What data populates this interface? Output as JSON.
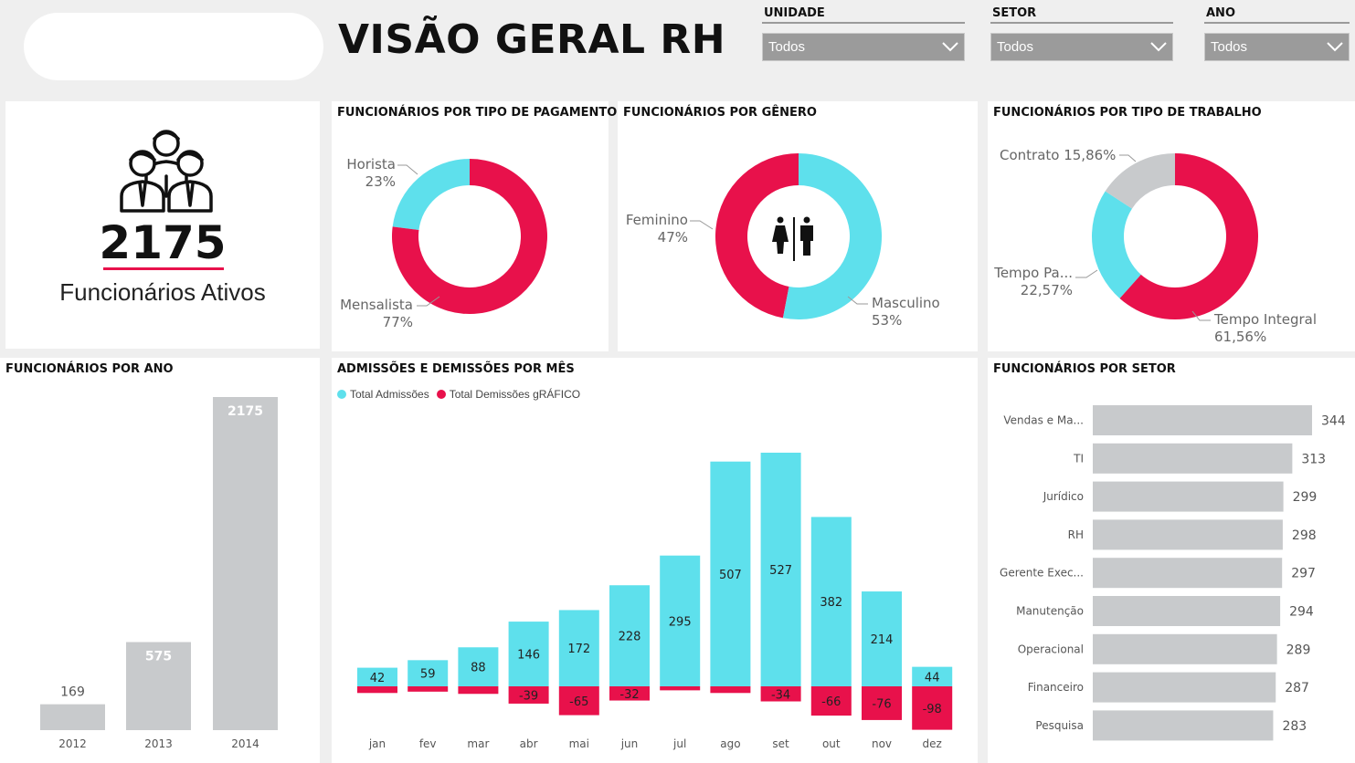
{
  "header": {
    "title": "VISÃO GERAL RH"
  },
  "filters": [
    {
      "label": "UNIDADE",
      "value": "Todos"
    },
    {
      "label": "SETOR",
      "value": "Todos"
    },
    {
      "label": "ANO",
      "value": "Todos"
    }
  ],
  "kpi": {
    "value": "2175",
    "label": "Funcionários Ativos",
    "icon": "people-group-icon"
  },
  "colors": {
    "cyan": "#5ee0ec",
    "red": "#e8114b",
    "gray": "#c8cacc"
  },
  "chart_data": [
    {
      "type": "pie",
      "title": "FUNCIONÁRIOS POR TIPO DE PAGAMENTO",
      "categories": [
        "Horista",
        "Mensalista"
      ],
      "values": [
        23,
        77
      ],
      "labels": [
        "23%",
        "77%"
      ]
    },
    {
      "type": "pie",
      "title": "FUNCIONÁRIOS POR GÊNERO",
      "categories": [
        "Feminino",
        "Masculino"
      ],
      "values": [
        47,
        53
      ],
      "labels": [
        "47%",
        "53%"
      ]
    },
    {
      "type": "pie",
      "title": "FUNCIONÁRIOS POR TIPO DE TRABALHO",
      "categories": [
        "Contrato",
        "Tempo Pa...",
        "Tempo Integral"
      ],
      "values": [
        15.86,
        22.57,
        61.56
      ],
      "labels": [
        "15,86%",
        "22,57%",
        "61,56%"
      ]
    },
    {
      "type": "bar",
      "title": "FUNCIONÁRIOS POR ANO",
      "categories": [
        "2012",
        "2013",
        "2014"
      ],
      "values": [
        169,
        575,
        2175
      ]
    },
    {
      "type": "bar",
      "title": "ADMISSÕES E DEMISSÕES POR MÊS",
      "categories": [
        "jan",
        "fev",
        "mar",
        "abr",
        "mai",
        "jun",
        "jul",
        "ago",
        "set",
        "out",
        "nov",
        "dez"
      ],
      "series": [
        {
          "name": "Total Admissões",
          "values": [
            42,
            59,
            88,
            146,
            172,
            228,
            295,
            507,
            527,
            382,
            214,
            44
          ]
        },
        {
          "name": "Total Demissões gRÁFICO",
          "values": [
            -15,
            -12,
            -17,
            -39,
            -65,
            -32,
            -9,
            -15,
            -34,
            -66,
            -76,
            -98
          ]
        }
      ],
      "shown_labels": [
        "42",
        "59",
        "88",
        "146",
        "172",
        "228",
        "295",
        "507",
        "527",
        "382",
        "214",
        "44",
        "",
        "",
        "",
        "-39",
        "-65",
        "-32",
        "",
        "",
        "-34",
        "-66",
        "-76",
        "-98"
      ]
    },
    {
      "type": "bar",
      "title": "FUNCIONÁRIOS POR SETOR",
      "categories": [
        "Vendas e Ma...",
        "TI",
        "Jurídico",
        "RH",
        "Gerente Exec...",
        "Manutenção",
        "Operacional",
        "Financeiro",
        "Pesquisa"
      ],
      "values": [
        344,
        313,
        299,
        298,
        297,
        294,
        289,
        287,
        283
      ]
    }
  ]
}
